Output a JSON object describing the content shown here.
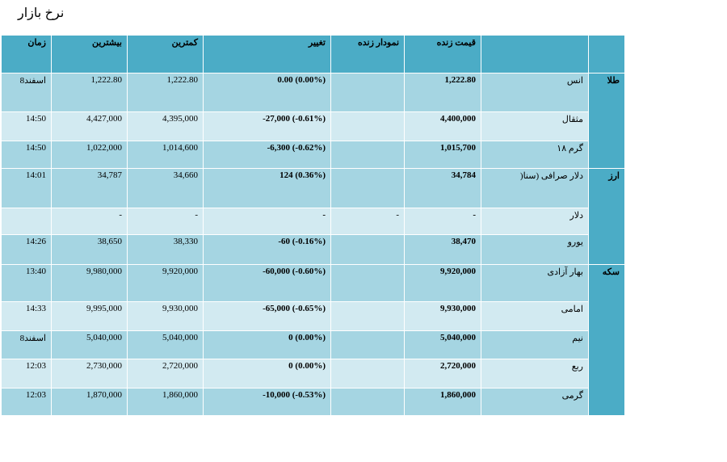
{
  "page_title": "نرخ بازار",
  "columns": {
    "time": "زمان",
    "high": "بیشترین",
    "low": "کمترین",
    "change": "تغییر",
    "live_chart": "نمودار زنده",
    "live_price": "قیمت زنده",
    "name": "",
    "category": ""
  },
  "groups": [
    {
      "category": "طلا",
      "rows": [
        {
          "name": "انس",
          "live_price": "1,222.80",
          "live_chart": "",
          "change": "0.00 (0.00%)",
          "low": "1,222.80",
          "high": "1,222.80",
          "time": "8اسفند"
        },
        {
          "name": "مثقال",
          "live_price": "4,400,000",
          "live_chart": "",
          "change": "-27,000 (-0.61%)",
          "low": "4,395,000",
          "high": "4,427,000",
          "time": "14:50"
        },
        {
          "name": "گرم ۱۸",
          "live_price": "1,015,700",
          "live_chart": "",
          "change": "-6,300 (-0.62%)",
          "low": "1,014,600",
          "high": "1,022,000",
          "time": "14:50"
        }
      ]
    },
    {
      "category": "ارز",
      "rows": [
        {
          "name": "دلار صرافی (سنا(",
          "live_price": "34,784",
          "live_chart": "",
          "change": "124 (0.36%)",
          "low": "34,660",
          "high": "34,787",
          "time": "14:01"
        },
        {
          "name": "دلار",
          "live_price": "-",
          "live_chart": "-",
          "change": "-",
          "low": "-",
          "high": "-",
          "time": ""
        },
        {
          "name": "یورو",
          "live_price": "38,470",
          "live_chart": "",
          "change": "-60 (-0.16%)",
          "low": "38,330",
          "high": "38,650",
          "time": "14:26"
        }
      ]
    },
    {
      "category": "سکه",
      "rows": [
        {
          "name": "بهار آزادی",
          "live_price": "9,920,000",
          "live_chart": "",
          "change": "-60,000 (-0.60%)",
          "low": "9,920,000",
          "high": "9,980,000",
          "time": "13:40"
        },
        {
          "name": "امامی",
          "live_price": "9,930,000",
          "live_chart": "",
          "change": "-65,000 (-0.65%)",
          "low": "9,930,000",
          "high": "9,995,000",
          "time": "14:33"
        },
        {
          "name": "نیم",
          "live_price": "5,040,000",
          "live_chart": "",
          "change": "0 (0.00%)",
          "low": "5,040,000",
          "high": "5,040,000",
          "time": "8اسفند"
        },
        {
          "name": "ربع",
          "live_price": "2,720,000",
          "live_chart": "",
          "change": "0 (0.00%)",
          "low": "2,720,000",
          "high": "2,730,000",
          "time": "12:03"
        },
        {
          "name": "گرمی",
          "live_price": "1,860,000",
          "live_chart": "",
          "change": "-10,000 (-0.53%)",
          "low": "1,860,000",
          "high": "1,870,000",
          "time": "12:03"
        }
      ]
    }
  ],
  "colors": {
    "header": "#4bacc6",
    "row_dark": "#a5d5e2",
    "row_light": "#d2eaf1"
  }
}
